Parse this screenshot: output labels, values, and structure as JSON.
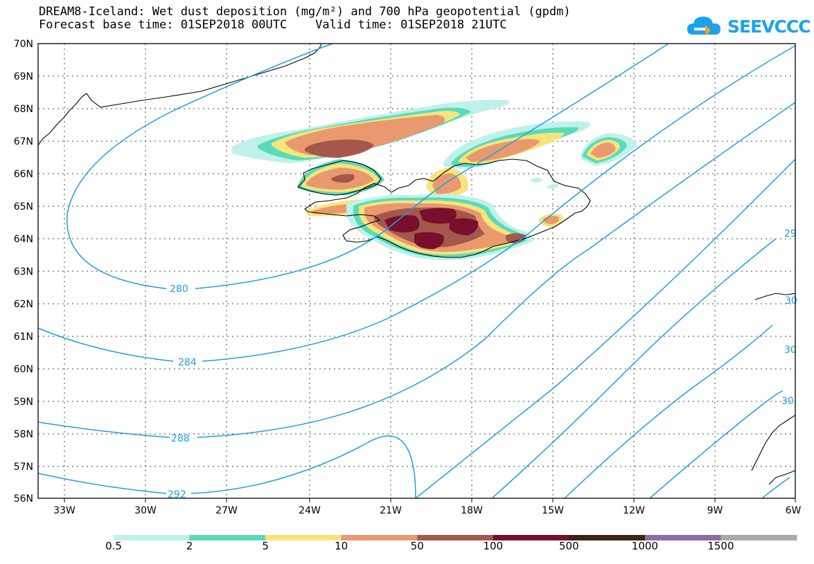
{
  "title_line1": "DREAM8-Iceland: Wet dust deposition (mg/m²) and 700 hPa geopotential (gpdm)",
  "title_line2": "Forecast base time: 01SEP2018 00UTC    Valid time: 01SEP2018 21UTC",
  "logo": {
    "text": "SEEVCCC",
    "icon": "cloud-icon",
    "color": "#1aa3e8"
  },
  "map": {
    "projection": "lat-lon",
    "lon_range": [
      -34.0,
      -6.0
    ],
    "lat_range": [
      56,
      70
    ],
    "lat_labels": [
      "70N",
      "69N",
      "68N",
      "67N",
      "66N",
      "65N",
      "64N",
      "63N",
      "62N",
      "61N",
      "60N",
      "59N",
      "58N",
      "57N",
      "56N"
    ],
    "lon_labels": [
      "33W",
      "30W",
      "27W",
      "24W",
      "21W",
      "18W",
      "15W",
      "12W",
      "9W",
      "6W"
    ],
    "contour_color": "#1a9ee8",
    "contour_labels": [
      "280",
      "284",
      "288",
      "292",
      "29",
      "30",
      "30",
      "30"
    ]
  },
  "legend": {
    "colors": [
      "#bff1ea",
      "#5adbb8",
      "#f7e47d",
      "#e89a6e",
      "#a4584c",
      "#780f2c",
      "#3b2317",
      "#8d6d9b",
      "#a9a9a9"
    ],
    "labels": [
      "0.5",
      "2",
      "5",
      "10",
      "50",
      "100",
      "500",
      "1000",
      "1500"
    ]
  }
}
